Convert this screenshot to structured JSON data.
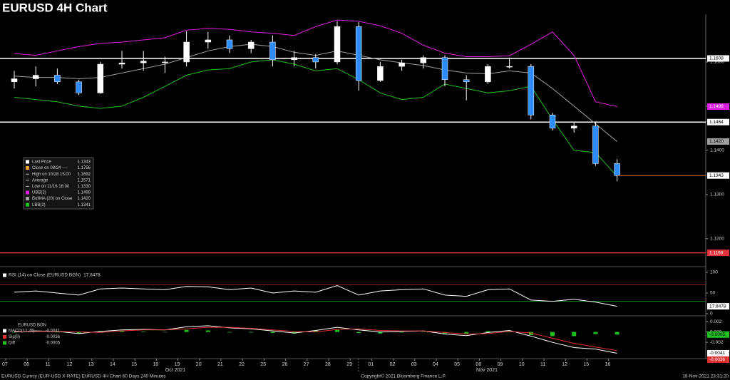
{
  "title": "EURUSD 4H Chart",
  "chart_data": [
    {
      "type": "candlestick",
      "categories": [
        "07",
        "08",
        "11",
        "12",
        "13",
        "14",
        "15",
        "18",
        "19",
        "20",
        "21",
        "22",
        "25",
        "26",
        "27",
        "28",
        "29",
        "01",
        "02",
        "03",
        "04",
        "05",
        "08",
        "09",
        "10",
        "11",
        "12",
        "15",
        "16"
      ],
      "months": [
        "Oct 2021",
        "Nov 2021"
      ],
      "open": [
        1.1555,
        1.1562,
        1.157,
        1.1555,
        1.153,
        1.1595,
        1.1598,
        1.16,
        1.16,
        1.1645,
        1.165,
        1.163,
        1.1645,
        1.1605,
        1.161,
        1.16,
        1.168,
        1.1558,
        1.159,
        1.1598,
        1.161,
        1.156,
        1.1555,
        1.159,
        1.159,
        1.148,
        1.145,
        1.1455,
        1.137
      ],
      "high": [
        1.158,
        1.159,
        1.1585,
        1.156,
        1.16,
        1.1625,
        1.1625,
        1.1612,
        1.167,
        1.1668,
        1.166,
        1.165,
        1.166,
        1.1625,
        1.1618,
        1.1692,
        1.169,
        1.16,
        1.1605,
        1.1615,
        1.1615,
        1.157,
        1.1595,
        1.161,
        1.1595,
        1.1485,
        1.1465,
        1.1465,
        1.138
      ],
      "low": [
        1.154,
        1.1545,
        1.155,
        1.1525,
        1.1528,
        1.1585,
        1.158,
        1.1575,
        1.159,
        1.163,
        1.162,
        1.162,
        1.159,
        1.159,
        1.1585,
        1.1595,
        1.1535,
        1.1555,
        1.158,
        1.1585,
        1.1545,
        1.1513,
        1.155,
        1.1585,
        1.147,
        1.1445,
        1.144,
        1.1365,
        1.133
      ],
      "close": [
        1.1562,
        1.157,
        1.1555,
        1.153,
        1.1595,
        1.1598,
        1.1602,
        1.16,
        1.1645,
        1.165,
        1.163,
        1.1645,
        1.1605,
        1.161,
        1.16,
        1.168,
        1.1558,
        1.159,
        1.1598,
        1.161,
        1.156,
        1.1555,
        1.159,
        1.159,
        1.148,
        1.145,
        1.1455,
        1.137,
        1.1343
      ],
      "up_color": "#ffffff",
      "down_color": "#2f8cff",
      "ylim": [
        1.114,
        1.1708
      ],
      "yticks": [
        {
          "value": 1.12,
          "label": "1.1200"
        },
        {
          "value": 1.13,
          "label": "1.1300"
        },
        {
          "value": 1.14,
          "label": "1.1400"
        },
        {
          "value": 1.15,
          "label": "1.1500"
        },
        {
          "value": 1.16,
          "label": "1.1600"
        }
      ],
      "series": [
        {
          "color": "#e020e0",
          "values": [
            1.1619,
            1.1615,
            1.1625,
            1.1635,
            1.1642,
            1.1645,
            1.165,
            1.1655,
            1.1672,
            1.1676,
            1.1674,
            1.1668,
            1.1665,
            1.166,
            1.168,
            1.1695,
            1.1692,
            1.1682,
            1.1665,
            1.1638,
            1.162,
            1.1612,
            1.1612,
            1.1614,
            1.164,
            1.1668,
            1.1615,
            1.151,
            1.1499
          ]
        },
        {
          "color": "#a0a0a0",
          "values": [
            1.1568,
            1.1565,
            1.1565,
            1.1562,
            1.1565,
            1.1575,
            1.1585,
            1.1595,
            1.161,
            1.1625,
            1.1635,
            1.164,
            1.1635,
            1.1622,
            1.1615,
            1.1625,
            1.1615,
            1.1605,
            1.1598,
            1.1592,
            1.1582,
            1.1575,
            1.1573,
            1.158,
            1.1575,
            1.154,
            1.15,
            1.146,
            1.142
          ]
        },
        {
          "color": "#20c020",
          "values": [
            1.152,
            1.1515,
            1.151,
            1.15,
            1.1495,
            1.15,
            1.152,
            1.1545,
            1.157,
            1.1582,
            1.1585,
            1.16,
            1.1605,
            1.1595,
            1.158,
            1.1585,
            1.156,
            1.153,
            1.1515,
            1.152,
            1.155,
            1.154,
            1.153,
            1.1535,
            1.1545,
            1.147,
            1.14,
            1.1395,
            1.1341
          ]
        }
      ],
      "legend": [
        {
          "name": "Last Price",
          "value": 1.1343,
          "color": "#ffffff",
          "tag_bg": "#ffffff",
          "line_color": "#c87020"
        },
        {
          "name": "Close on 08/24 ----",
          "value": 1.1756,
          "color": "#f0a030"
        },
        {
          "name": "High on 10/28 15:00",
          "value": 1.1692
        },
        {
          "name": "Average",
          "value": 1.1571
        },
        {
          "name": "Low on 11/16 16:00",
          "value": 1.133,
          "label": "1.1330"
        },
        {
          "name": "UBB(2)",
          "value": 1.1499,
          "color": "#e020e0",
          "tag_bg": "#e020e0"
        },
        {
          "name": "BollMA (20)  on Close",
          "value": 1.142,
          "label": "1.1420",
          "color": "#a0a0a0",
          "tag_bg": "#a0a0a0"
        },
        {
          "name": "LBB(2)",
          "value": 1.1341,
          "color": "#20c020"
        }
      ],
      "levels": [
        {
          "value": 1.1608,
          "color": "#ffffff"
        },
        {
          "value": 1.1464,
          "color": "#ffffff"
        },
        {
          "value": 1.1168,
          "color": "#e0323c"
        }
      ]
    },
    {
      "type": "line",
      "label": "RSI (14)  on Close (EURUSD BGN)",
      "ylim": [
        0,
        100
      ],
      "yticks": [
        0,
        50,
        100
      ],
      "series": [
        {
          "color": "#ffffff",
          "tag_bg": "#ffffff",
          "values": [
            52,
            55,
            50,
            45,
            60,
            62,
            60,
            58,
            66,
            65,
            58,
            62,
            50,
            55,
            52,
            68,
            45,
            55,
            58,
            60,
            45,
            42,
            58,
            60,
            33,
            30,
            35,
            28,
            17.8478
          ]
        }
      ],
      "levels": [
        {
          "value": 70,
          "color": "#c02020"
        },
        {
          "value": 30,
          "color": "#20a020"
        }
      ]
    },
    {
      "type": "line",
      "label": "EURUSD BGN",
      "ylim": [
        -0.005,
        0.0027
      ],
      "yticks": [
        0.002,
        {
          "value": 0,
          "label": "0.000"
        },
        -0.002
      ],
      "series": [
        {
          "name": "MACD(12,26)",
          "style": "line",
          "color": "#ffffff",
          "tag_bg": "#ffffff",
          "values": [
            0.0,
            0.0002,
            0.0001,
            -0.0003,
            0.0001,
            0.0004,
            0.0005,
            0.0004,
            0.001,
            0.0012,
            0.0008,
            0.0006,
            0.0002,
            -0.0002,
            0.0003,
            0.0009,
            0.0004,
            0.0,
            0.0001,
            0.0002,
            -0.0004,
            -0.0007,
            -0.0001,
            0.0003,
            -0.0008,
            -0.002,
            -0.003,
            -0.0033,
            -0.0041
          ]
        },
        {
          "name": "Sig(9)",
          "style": "line",
          "color": "#e03030",
          "tag_bg": "#e03030",
          "values": [
            0.0001,
            0.0001,
            0.0001,
            0.0,
            -0.0001,
            0.0002,
            0.0004,
            0.0004,
            0.0006,
            0.0009,
            0.0009,
            0.0007,
            0.0004,
            0.0001,
            0.0,
            0.0005,
            0.0006,
            0.0003,
            0.0002,
            0.0002,
            -0.0001,
            -0.0004,
            -0.0003,
            0.0001,
            -0.0002,
            -0.0012,
            -0.0022,
            -0.0029,
            -0.0036
          ]
        },
        {
          "name": "Diff",
          "style": "bar",
          "color": "#20c020",
          "tag_bg": "#20c020",
          "values": [
            -0.0001,
            0.0001,
            0.0,
            -0.0003,
            0.0002,
            0.0002,
            0.0001,
            0.0,
            0.0004,
            0.0003,
            -0.0001,
            -0.0001,
            -0.0002,
            -0.0003,
            0.0003,
            0.0004,
            -0.0002,
            -0.0003,
            -0.0001,
            0.0,
            -0.0003,
            -0.0003,
            0.0002,
            0.0002,
            -0.0006,
            -0.0008,
            -0.0008,
            -0.0004,
            -0.0005
          ]
        }
      ]
    }
  ],
  "footer": {
    "left": "EURUSD Curncy (EUR-USD X-RATE) EURUSD 4H Chart 60 Days 240 Minutes",
    "center": "Copyright© 2021 Bloomberg Finance L.P.",
    "right": "16-Nov-2021 23:31:20"
  }
}
